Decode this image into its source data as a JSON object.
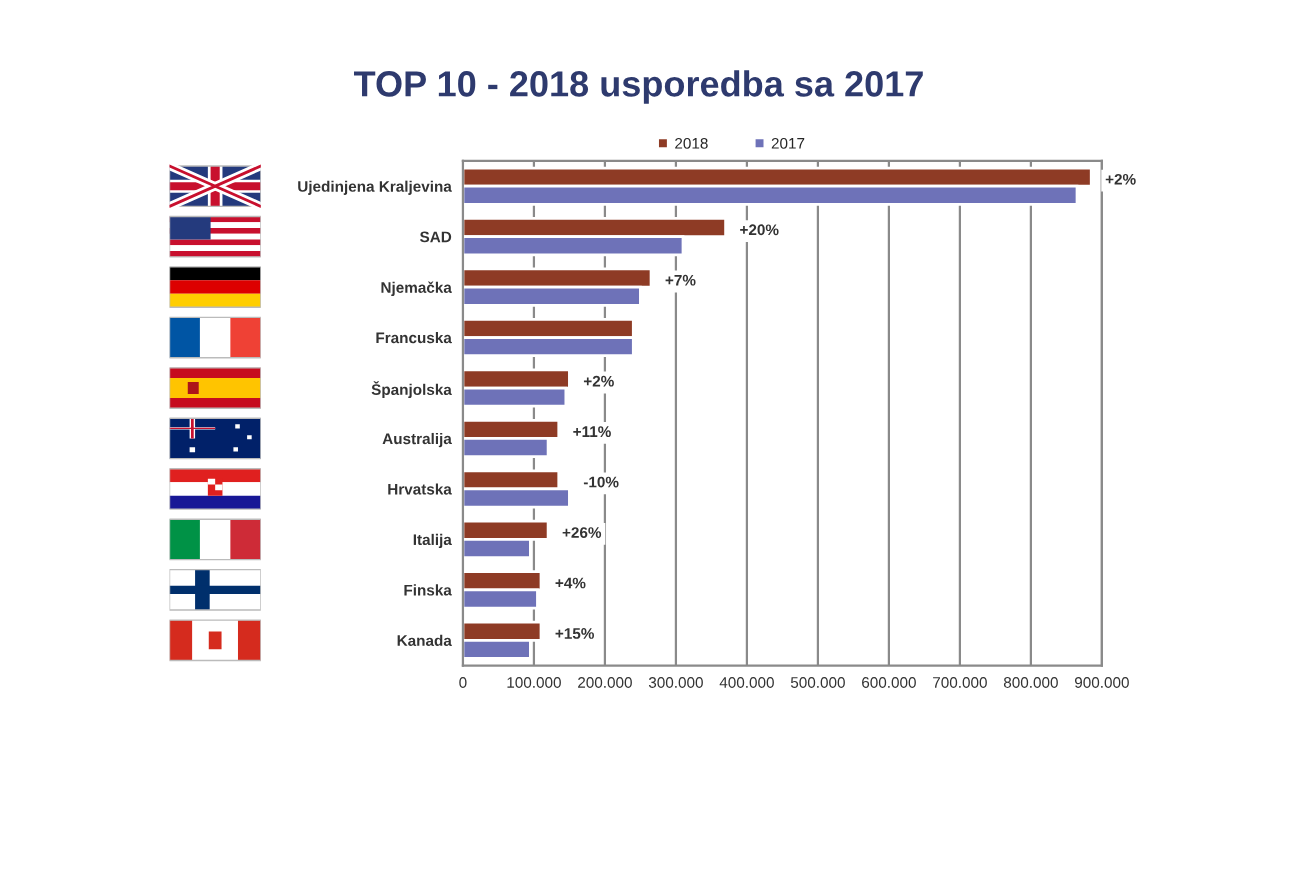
{
  "chart_data": {
    "type": "bar",
    "orientation": "horizontal",
    "title": "TOP 10 - 2018 usporedba sa 2017",
    "categories": [
      "Ujedinjena Kraljevina",
      "SAD",
      "Njemačka",
      "Francuska",
      "Španjolska",
      "Australija",
      "Hrvatska",
      "Italija",
      "Finska",
      "Kanada"
    ],
    "series": [
      {
        "name": "2018",
        "color": "#8e3b25",
        "values": [
          885000,
          370000,
          265000,
          240000,
          150000,
          135000,
          135000,
          120000,
          110000,
          110000
        ]
      },
      {
        "name": "2017",
        "color": "#6e72b8",
        "values": [
          865000,
          310000,
          250000,
          240000,
          145000,
          120000,
          150000,
          95000,
          105000,
          95000
        ]
      }
    ],
    "xlim": [
      0,
      900000
    ],
    "xticks": [
      0,
      {
        "value": 100000,
        "label": "100.000"
      },
      {
        "value": 200000,
        "label": "200.000"
      },
      {
        "value": 300000,
        "label": "300.000"
      },
      {
        "value": 400000,
        "label": "400.000"
      },
      {
        "value": 500000,
        "label": "500.000"
      },
      {
        "value": 600000,
        "label": "600.000"
      },
      {
        "value": 700000,
        "label": "700.000"
      },
      {
        "value": 800000,
        "label": "800.000"
      },
      {
        "value": 900000,
        "label": "900.000"
      }
    ],
    "annotations": [
      {
        "text": "+2%",
        "x": 885000,
        "y": "Ujedinjena Kraljevina"
      },
      {
        "text": "+20%",
        "x": 370000,
        "y": "SAD"
      },
      {
        "text": "+7%",
        "x": 265000,
        "y": "Njemačka"
      },
      {
        "text": "+2%",
        "x": 150000,
        "y": "Španjolska"
      },
      {
        "text": "+11%",
        "x": 135000,
        "y": "Australija"
      },
      {
        "text": "-10%",
        "x": 150000,
        "y": "Hrvatska"
      },
      {
        "text": "+26%",
        "x": 120000,
        "y": "Italija"
      },
      {
        "text": "+4%",
        "x": 110000,
        "y": "Finska"
      },
      {
        "text": "+15%",
        "x": 110000,
        "y": "Kanada"
      }
    ],
    "grid": "x",
    "legend": "top"
  }
}
